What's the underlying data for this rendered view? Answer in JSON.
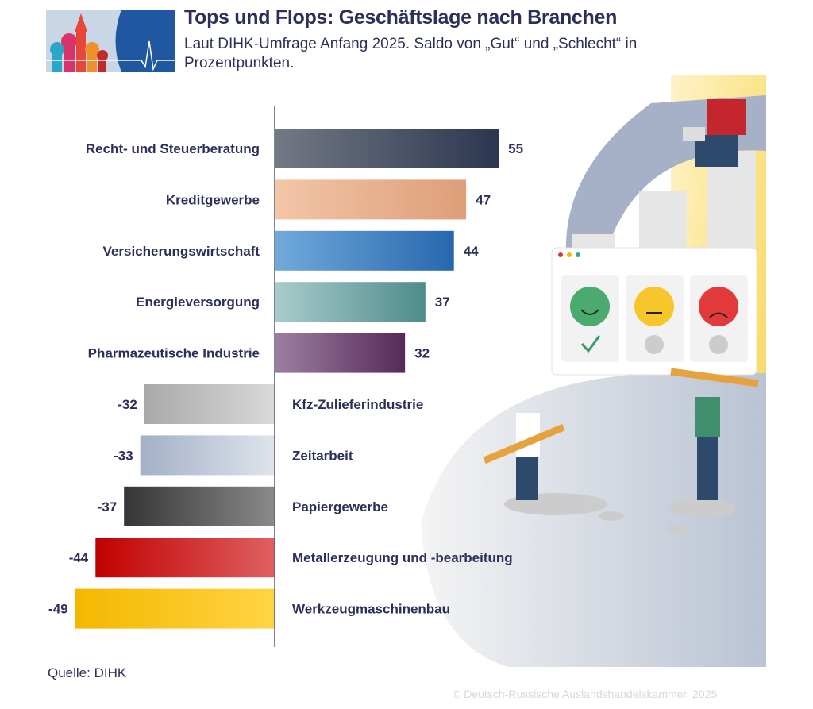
{
  "header": {
    "title": "Tops und Flops: Geschäftslage nach Branchen",
    "subtitle": "Laut DIHK-Umfrage Anfang 2025. Saldo von „Gut“ und „Schlecht“ in Prozentpunkten."
  },
  "chart_data": {
    "type": "bar",
    "orientation": "horizontal",
    "title": "Tops und Flops: Geschäftslage nach Branchen",
    "categories": [
      "Recht- und Steuerberatung",
      "Kreditgewerbe",
      "Versicherungswirtschaft",
      "Energieversorgung",
      "Pharmazeutische Industrie",
      "Kfz-Zulieferindustrie",
      "Zeitarbeit",
      "Papiergewerbe",
      "Metallerzeugung und -bearbeitung",
      "Werkzeugmaschinenbau"
    ],
    "values": [
      55,
      47,
      44,
      37,
      32,
      -32,
      -33,
      -37,
      -44,
      -49
    ],
    "colors": [
      [
        "#737985",
        "#2c3650"
      ],
      [
        "#f3c6a8",
        "#dd9e78"
      ],
      [
        "#72aadb",
        "#2767ae"
      ],
      [
        "#a9cccb",
        "#4e8c8c"
      ],
      [
        "#9d7fa3",
        "#562a58"
      ],
      [
        "#a9a9a9",
        "#d9d9d9"
      ],
      [
        "#a3b0c6",
        "#dfe4ec"
      ],
      [
        "#353535",
        "#8a8a8a"
      ],
      [
        "#c00000",
        "#e06060"
      ],
      [
        "#f5b700",
        "#ffd445"
      ]
    ],
    "xlim": [
      -55,
      60
    ],
    "grid": false,
    "data_labels": true
  },
  "footer": {
    "source": "Quelle: DIHK",
    "copyright": "© Deutsch-Russische Auslandshandelskammer, 2025"
  }
}
